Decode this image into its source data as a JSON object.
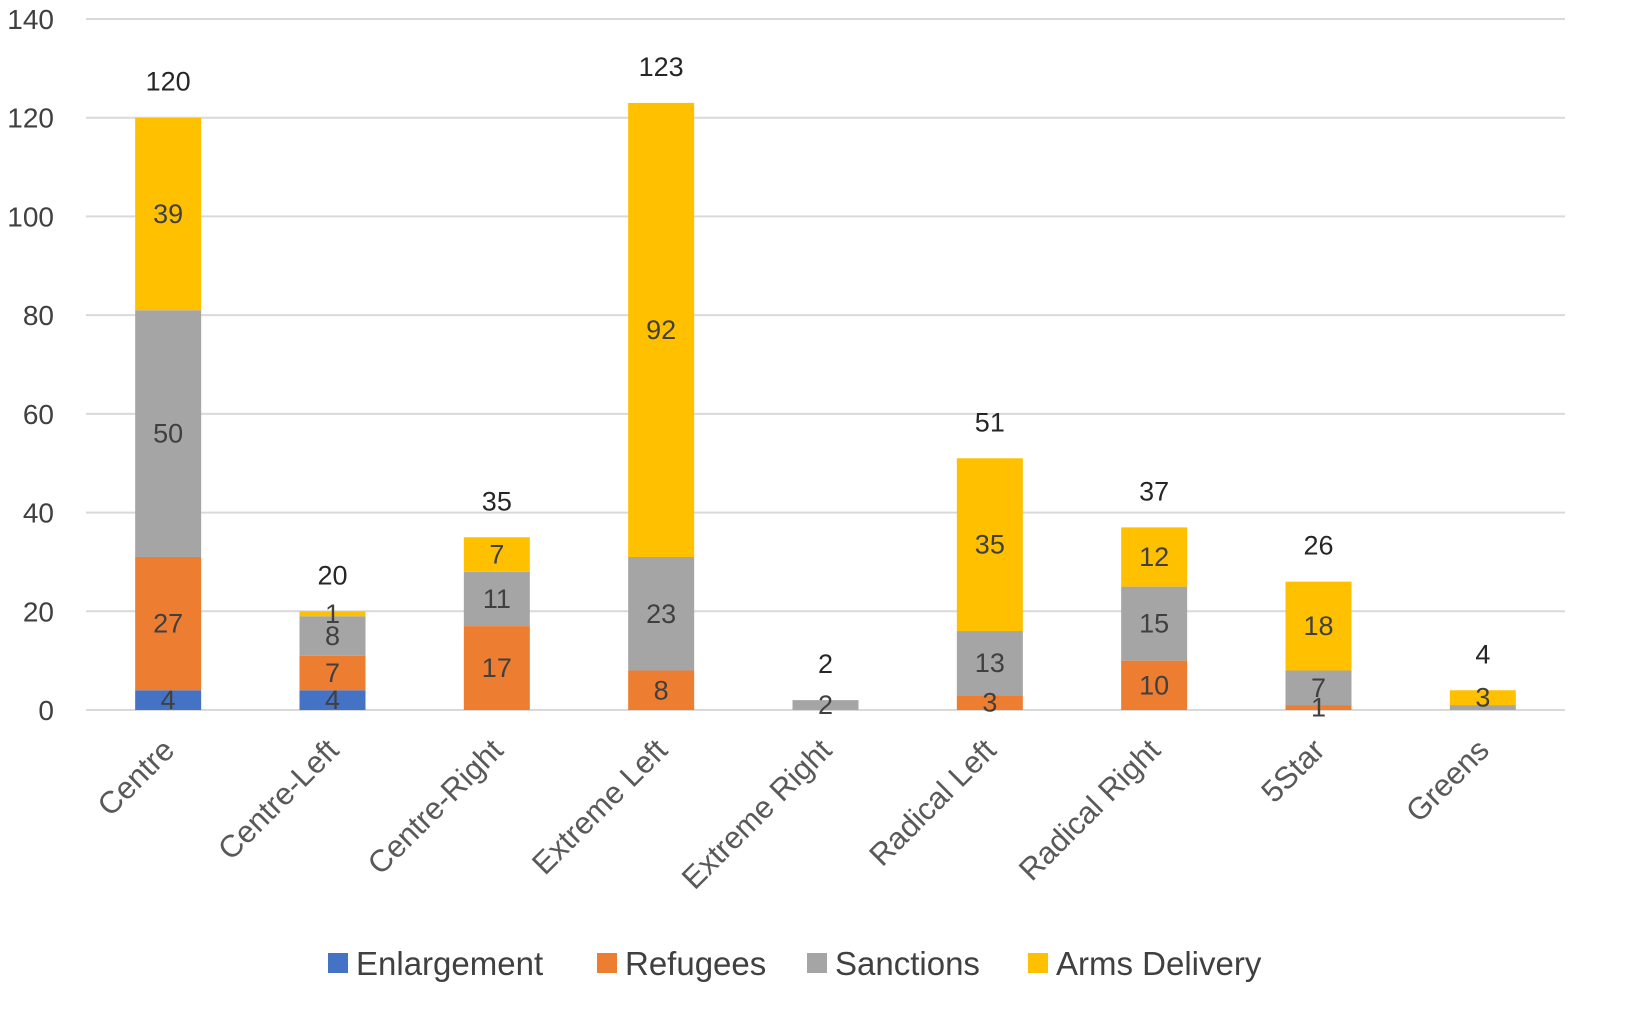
{
  "chart_data": {
    "type": "bar",
    "stacked": true,
    "title": "",
    "xlabel": "",
    "ylabel": "",
    "ylim": [
      0,
      140
    ],
    "yticks": [
      0,
      20,
      40,
      60,
      80,
      100,
      120,
      140
    ],
    "grid": true,
    "legend_position": "bottom",
    "categories": [
      "Centre",
      "Centre-Left",
      "Centre-Right",
      "Extreme Left",
      "Extreme Right",
      "Radical Left",
      "Radical Right",
      "5Star",
      "Greens"
    ],
    "series": [
      {
        "name": "Enlargement",
        "color": "#4472c4",
        "values": [
          4,
          4,
          0,
          0,
          0,
          0,
          0,
          0,
          0
        ],
        "labels": [
          "4",
          "4",
          "",
          "",
          "",
          "",
          "",
          "",
          ""
        ]
      },
      {
        "name": "Refugees",
        "color": "#ed7d31",
        "values": [
          27,
          7,
          17,
          8,
          0,
          3,
          10,
          1,
          0
        ],
        "labels": [
          "27",
          "7",
          "17",
          "8",
          "",
          "3",
          "10",
          "1",
          ""
        ]
      },
      {
        "name": "Sanctions",
        "color": "#a5a5a5",
        "values": [
          50,
          8,
          11,
          23,
          2,
          13,
          15,
          7,
          1
        ],
        "labels": [
          "50",
          "8",
          "11",
          "23",
          "2",
          "13",
          "15",
          "7",
          ""
        ]
      },
      {
        "name": "Arms Delivery",
        "color": "#ffc000",
        "values": [
          39,
          1,
          7,
          92,
          0,
          35,
          12,
          18,
          3
        ],
        "labels": [
          "39",
          "1",
          "7",
          "92",
          "",
          "35",
          "12",
          "18",
          "3"
        ]
      }
    ],
    "totals": [
      120,
      20,
      35,
      123,
      2,
      51,
      37,
      26,
      4
    ]
  }
}
